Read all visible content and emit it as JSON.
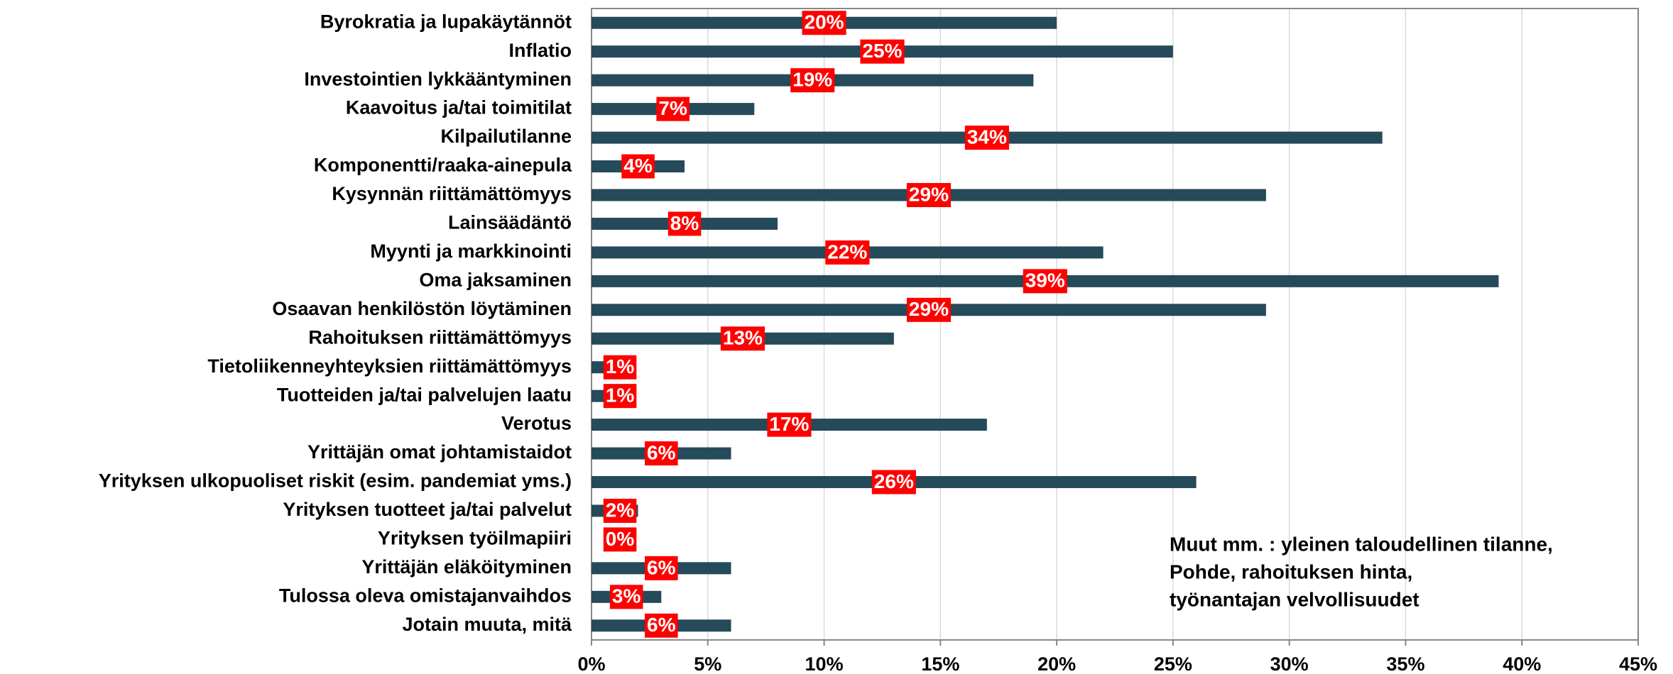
{
  "chart_data": {
    "type": "bar",
    "orientation": "horizontal",
    "categories": [
      "Byrokratia ja lupakäytännöt",
      "Inflatio ",
      "Investointien lykkääntyminen",
      "Kaavoitus ja/tai toimitilat",
      "Kilpailutilanne",
      "Komponentti/raaka-ainepula",
      "Kysynnän riittämättömyys",
      "Lainsäädäntö",
      "Myynti ja markkinointi",
      "Oma jaksaminen",
      "Osaavan henkilöstön löytäminen",
      "Rahoituksen riittämättömyys",
      "Tietoliikenneyhteyksien riittämättömyys",
      "Tuotteiden ja/tai palvelujen laatu",
      "Verotus",
      "Yrittäjän omat johtamistaidot",
      "Yrityksen ulkopuoliset riskit (esim. pandemiat yms.)",
      "Yrityksen tuotteet ja/tai palvelut",
      "Yrityksen työilmapiiri",
      "Yrittäjän eläköityminen",
      "Tulossa oleva omistajanvaihdos",
      "Jotain muuta, mitä"
    ],
    "values": [
      20,
      25,
      19,
      7,
      34,
      4,
      29,
      8,
      22,
      39,
      29,
      13,
      1,
      1,
      17,
      6,
      26,
      2,
      0,
      6,
      3,
      6
    ],
    "value_labels": [
      "20%",
      "25%",
      "19%",
      "7%",
      "34%",
      "4%",
      "29%",
      "8%",
      "22%",
      "39%",
      "29%",
      "13%",
      "1%",
      "1%",
      "17%",
      "6%",
      "26%",
      "2%",
      "0%",
      "6%",
      "3%",
      "6%"
    ],
    "color": "#254a5a",
    "label_color": "#ff0000",
    "xlim": [
      0,
      45
    ],
    "xticks": [
      {
        "value": 0,
        "label": "0%"
      },
      {
        "value": 5,
        "label": "5%"
      },
      {
        "value": 10,
        "label": "10%"
      },
      {
        "value": 15,
        "label": "15%"
      },
      {
        "value": 20,
        "label": "20%"
      },
      {
        "value": 25,
        "label": "25%"
      },
      {
        "value": 30,
        "label": "30%"
      },
      {
        "value": 35,
        "label": "35%"
      },
      {
        "value": 40,
        "label": "40%"
      },
      {
        "value": 45,
        "label": "45%"
      }
    ],
    "grid": true,
    "annotation": [
      "Muut mm. : yleinen taloudellinen tilanne,",
      "Pohde, rahoituksen hinta,",
      "työnantajan velvollisuudet"
    ]
  }
}
